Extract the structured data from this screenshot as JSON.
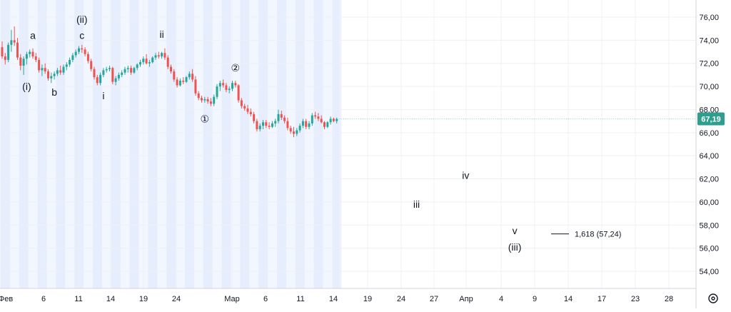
{
  "chart_data": {
    "type": "candlestick",
    "title": "",
    "xlabel": "",
    "ylabel": "",
    "ylim": [
      53,
      77
    ],
    "y_ticks": [
      "54,00",
      "56,00",
      "58,00",
      "60,00",
      "62,00",
      "64,00",
      "66,00",
      "68,00",
      "70,00",
      "72,00",
      "74,00",
      "76,00"
    ],
    "x_ticks": [
      "Фев",
      "6",
      "11",
      "14",
      "19",
      "24",
      "Мар",
      "6",
      "11",
      "14",
      "19",
      "24",
      "27",
      "Апр",
      "4",
      "9",
      "14",
      "17",
      "23",
      "28"
    ],
    "last_price": "67,19",
    "last_price_value": 67.19,
    "colors": {
      "up": "#26a69a",
      "down": "#ef5350",
      "session_band": "#dce6fb",
      "grid": "#eef0f3",
      "price_label": "#2e9e8e"
    },
    "candles": [
      [
        73.4,
        73.9,
        72.4,
        72.6
      ],
      [
        72.6,
        72.9,
        71.9,
        72.3
      ],
      [
        72.3,
        73.8,
        72.1,
        73.6
      ],
      [
        73.6,
        74.9,
        73.0,
        74.0
      ],
      [
        74.0,
        75.2,
        73.5,
        73.8
      ],
      [
        73.8,
        74.2,
        72.3,
        72.5
      ],
      [
        72.5,
        72.8,
        71.4,
        71.8
      ],
      [
        71.8,
        72.6,
        71.0,
        72.4
      ],
      [
        72.4,
        73.0,
        71.9,
        72.8
      ],
      [
        72.8,
        73.2,
        72.5,
        73.0
      ],
      [
        73.0,
        73.3,
        72.4,
        72.6
      ],
      [
        72.6,
        72.9,
        72.1,
        72.3
      ],
      [
        72.3,
        72.5,
        71.2,
        71.4
      ],
      [
        71.4,
        71.9,
        70.9,
        71.6
      ],
      [
        71.6,
        72.0,
        71.1,
        71.3
      ],
      [
        71.3,
        71.5,
        70.5,
        70.7
      ],
      [
        70.7,
        71.2,
        70.3,
        70.9
      ],
      [
        70.9,
        71.3,
        70.6,
        71.1
      ],
      [
        71.1,
        71.6,
        70.9,
        71.4
      ],
      [
        71.4,
        71.8,
        71.0,
        71.2
      ],
      [
        71.2,
        71.9,
        71.0,
        71.7
      ],
      [
        71.7,
        72.1,
        71.4,
        71.9
      ],
      [
        71.9,
        72.5,
        71.7,
        72.3
      ],
      [
        72.3,
        72.9,
        72.1,
        72.7
      ],
      [
        72.7,
        73.2,
        72.5,
        73.0
      ],
      [
        73.0,
        73.5,
        72.8,
        73.3
      ],
      [
        73.3,
        73.6,
        72.9,
        73.2
      ],
      [
        73.2,
        73.4,
        72.6,
        72.8
      ],
      [
        72.8,
        73.0,
        72.0,
        72.2
      ],
      [
        72.2,
        72.4,
        71.3,
        71.5
      ],
      [
        71.5,
        71.7,
        70.6,
        70.8
      ],
      [
        70.8,
        71.0,
        70.1,
        70.3
      ],
      [
        70.3,
        71.2,
        70.1,
        71.0
      ],
      [
        71.0,
        71.6,
        70.8,
        71.4
      ],
      [
        71.4,
        71.7,
        71.2,
        71.5
      ],
      [
        71.5,
        71.8,
        71.3,
        71.6
      ],
      [
        71.6,
        71.7,
        70.2,
        70.4
      ],
      [
        70.4,
        70.9,
        70.1,
        70.7
      ],
      [
        70.7,
        71.2,
        70.5,
        71.0
      ],
      [
        71.0,
        71.4,
        70.8,
        71.2
      ],
      [
        71.2,
        71.7,
        71.0,
        71.5
      ],
      [
        71.5,
        71.8,
        71.2,
        71.6
      ],
      [
        71.6,
        71.8,
        71.0,
        71.2
      ],
      [
        71.2,
        71.7,
        71.1,
        71.6
      ],
      [
        71.6,
        72.0,
        71.4,
        71.9
      ],
      [
        71.9,
        72.3,
        71.7,
        72.1
      ],
      [
        72.1,
        72.6,
        71.9,
        72.4
      ],
      [
        72.4,
        72.8,
        71.9,
        72.0
      ],
      [
        72.0,
        72.3,
        71.7,
        72.1
      ],
      [
        72.1,
        72.6,
        72.0,
        72.5
      ],
      [
        72.5,
        72.9,
        72.3,
        72.7
      ],
      [
        72.7,
        73.0,
        72.4,
        72.6
      ],
      [
        72.6,
        73.0,
        72.4,
        72.9
      ],
      [
        72.9,
        73.3,
        72.3,
        72.5
      ],
      [
        72.5,
        72.7,
        71.5,
        71.7
      ],
      [
        71.7,
        71.9,
        71.1,
        71.3
      ],
      [
        71.3,
        71.5,
        70.4,
        70.6
      ],
      [
        70.6,
        70.8,
        69.9,
        70.1
      ],
      [
        70.1,
        70.7,
        70.0,
        70.5
      ],
      [
        70.5,
        70.8,
        70.2,
        70.4
      ],
      [
        70.4,
        70.9,
        70.3,
        70.8
      ],
      [
        70.8,
        71.3,
        70.6,
        71.1
      ],
      [
        71.1,
        71.5,
        70.4,
        70.6
      ],
      [
        70.6,
        70.9,
        69.2,
        69.4
      ],
      [
        69.4,
        69.6,
        68.8,
        69.0
      ],
      [
        69.0,
        69.2,
        68.6,
        68.8
      ],
      [
        68.8,
        69.1,
        68.6,
        68.9
      ],
      [
        68.9,
        69.1,
        68.5,
        68.7
      ],
      [
        68.7,
        69.0,
        68.3,
        68.5
      ],
      [
        68.5,
        69.3,
        68.3,
        69.1
      ],
      [
        69.1,
        70.2,
        68.9,
        70.0
      ],
      [
        70.0,
        70.5,
        69.6,
        70.3
      ],
      [
        70.3,
        70.6,
        69.9,
        70.1
      ],
      [
        70.1,
        70.3,
        69.5,
        69.7
      ],
      [
        69.7,
        70.0,
        69.4,
        69.8
      ],
      [
        69.8,
        70.5,
        69.6,
        70.3
      ],
      [
        70.3,
        70.5,
        69.9,
        70.1
      ],
      [
        70.1,
        70.2,
        68.6,
        68.8
      ],
      [
        68.8,
        69.0,
        68.1,
        68.3
      ],
      [
        68.3,
        68.5,
        67.9,
        68.1
      ],
      [
        68.1,
        68.4,
        67.6,
        67.8
      ],
      [
        67.8,
        68.1,
        67.4,
        67.6
      ],
      [
        67.6,
        67.8,
        66.8,
        67.0
      ],
      [
        67.0,
        67.2,
        66.1,
        66.3
      ],
      [
        66.3,
        66.8,
        66.1,
        66.6
      ],
      [
        66.6,
        67.1,
        66.3,
        66.9
      ],
      [
        66.9,
        67.1,
        66.4,
        66.6
      ],
      [
        66.6,
        66.9,
        66.3,
        66.5
      ],
      [
        66.5,
        67.0,
        66.4,
        66.8
      ],
      [
        66.8,
        67.2,
        66.5,
        67.0
      ],
      [
        67.0,
        68.0,
        66.8,
        67.6
      ],
      [
        67.6,
        67.9,
        67.1,
        67.3
      ],
      [
        67.3,
        67.5,
        66.8,
        67.0
      ],
      [
        67.0,
        67.3,
        66.2,
        66.4
      ],
      [
        66.4,
        66.6,
        65.9,
        66.1
      ],
      [
        66.1,
        66.5,
        65.6,
        65.9
      ],
      [
        65.9,
        66.4,
        65.7,
        66.2
      ],
      [
        66.2,
        66.8,
        66.0,
        66.6
      ],
      [
        66.6,
        67.2,
        66.4,
        67.0
      ],
      [
        67.0,
        67.2,
        66.3,
        66.5
      ],
      [
        66.5,
        67.0,
        66.3,
        66.8
      ],
      [
        66.8,
        67.7,
        66.6,
        67.5
      ],
      [
        67.5,
        67.8,
        67.2,
        67.4
      ],
      [
        67.4,
        67.7,
        67.0,
        67.2
      ],
      [
        67.2,
        67.5,
        66.8,
        66.9
      ],
      [
        66.9,
        67.0,
        66.3,
        66.5
      ],
      [
        66.5,
        67.0,
        66.4,
        66.9
      ],
      [
        66.9,
        67.4,
        66.7,
        67.2
      ],
      [
        67.2,
        67.3,
        66.9,
        67.0
      ],
      [
        67.0,
        67.3,
        66.8,
        67.19
      ]
    ],
    "wave_labels": [
      {
        "text": "a",
        "xi": 10,
        "y": 74.1
      },
      {
        "text": "(i)",
        "xi": 8,
        "y": 69.7
      },
      {
        "text": "b",
        "xi": 17,
        "y": 69.2
      },
      {
        "text": "(ii)",
        "xi": 26,
        "y": 75.5
      },
      {
        "text": "c",
        "xi": 26,
        "y": 74.1
      },
      {
        "text": "i",
        "xi": 33,
        "y": 68.9
      },
      {
        "text": "ii",
        "xi": 52,
        "y": 74.2
      },
      {
        "text": "①",
        "xi": 66,
        "y": 66.9
      },
      {
        "text": "②",
        "xi": 76,
        "y": 71.3
      },
      {
        "text": "iii",
        "xi": 135,
        "y": 59.5
      },
      {
        "text": "iv",
        "xi": 151,
        "y": 62.0
      },
      {
        "text": "v",
        "xi": 167,
        "y": 57.2
      },
      {
        "text": "(iii)",
        "xi": 167,
        "y": 55.8
      }
    ],
    "fib_label": "1,618 (57,24)",
    "fib_value": 57.24
  },
  "toolbar": {
    "settings_icon": "gear-icon"
  }
}
